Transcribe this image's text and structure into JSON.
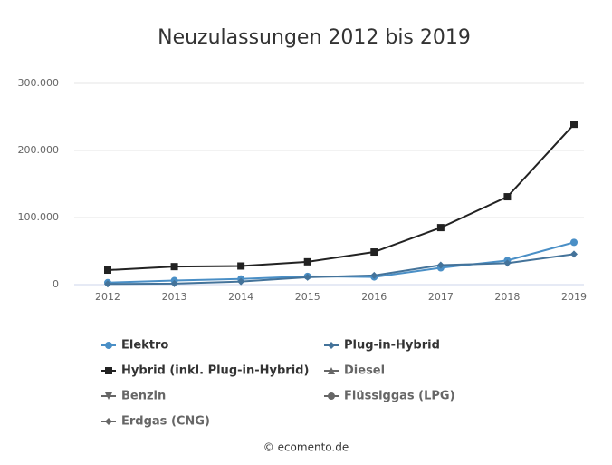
{
  "chart_data": {
    "type": "line",
    "title": "Neuzulassungen 2012 bis 2019",
    "categories": [
      "2012",
      "2013",
      "2014",
      "2015",
      "2016",
      "2017",
      "2018",
      "2019"
    ],
    "series": [
      {
        "name": "Elektro",
        "color": "#4a8fc6",
        "marker": "circle",
        "visible": true,
        "values": [
          3000,
          6000,
          8500,
          12400,
          11400,
          25000,
          36000,
          63000
        ]
      },
      {
        "name": "Plug-in-Hybrid",
        "color": "#44739a",
        "marker": "diamond",
        "visible": true,
        "values": [
          1000,
          1500,
          4500,
          11000,
          13700,
          29000,
          32000,
          45500
        ]
      },
      {
        "name": "Hybrid (inkl. Plug-in-Hybrid)",
        "color": "#222222",
        "marker": "square",
        "visible": true,
        "values": [
          21600,
          26800,
          27700,
          34000,
          48600,
          85000,
          131000,
          239000
        ]
      },
      {
        "name": "Diesel",
        "color": "#666666",
        "marker": "triangle",
        "visible": false,
        "values": [
          null,
          null,
          null,
          null,
          null,
          null,
          null,
          null
        ]
      },
      {
        "name": "Benzin",
        "color": "#666666",
        "marker": "triangle-down",
        "visible": false,
        "values": [
          null,
          null,
          null,
          null,
          null,
          null,
          null,
          null
        ]
      },
      {
        "name": "Flüssiggas (LPG)",
        "color": "#666666",
        "marker": "circle",
        "visible": false,
        "values": [
          null,
          null,
          null,
          null,
          null,
          null,
          null,
          null
        ]
      },
      {
        "name": "Erdgas (CNG)",
        "color": "#666666",
        "marker": "diamond",
        "visible": false,
        "values": [
          null,
          null,
          null,
          null,
          null,
          null,
          null,
          null
        ]
      }
    ],
    "ylim": [
      0,
      300000
    ],
    "yticks": [
      0,
      {
        "value": 100000,
        "label": "100.000"
      },
      {
        "value": 200000,
        "label": "200.000"
      },
      {
        "value": 300000,
        "label": "300.000"
      }
    ],
    "grid": true,
    "legend": "bottom",
    "credit": "© ecomento.de"
  }
}
